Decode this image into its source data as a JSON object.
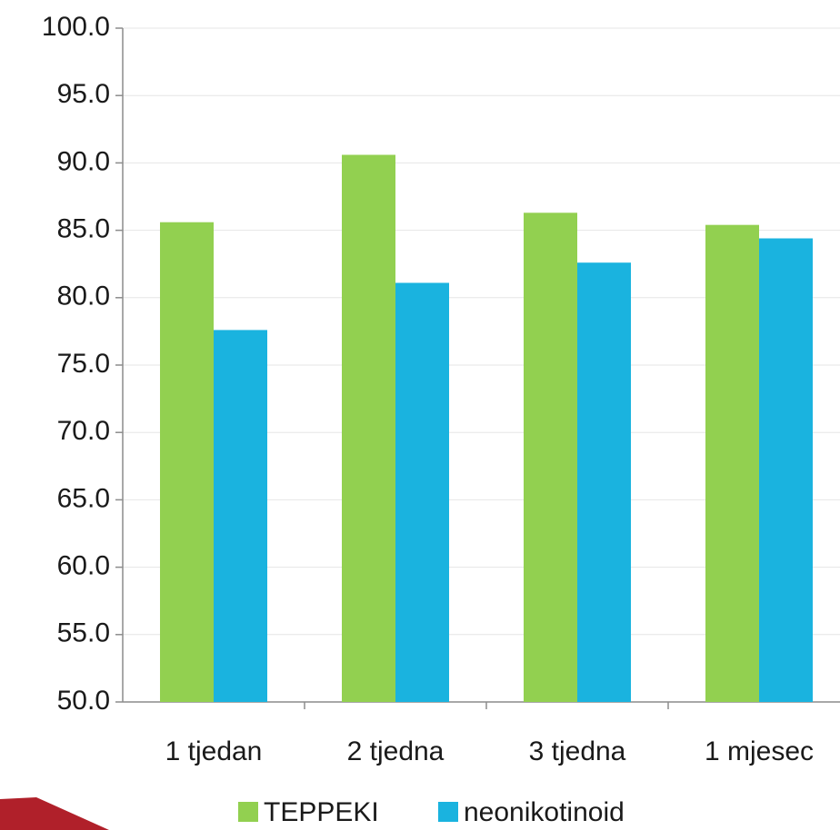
{
  "chart_data": {
    "type": "bar",
    "categories": [
      "1 tjedan",
      "2 tjedna",
      "3 tjedna",
      "1 mjesec"
    ],
    "series": [
      {
        "name": "TEPPEKI",
        "color": "#92d050",
        "values": [
          85.6,
          90.6,
          86.3,
          85.4
        ]
      },
      {
        "name": "neonikotinoid",
        "color": "#1ab3df",
        "values": [
          77.6,
          81.1,
          82.6,
          84.4
        ]
      }
    ],
    "ylim": [
      50,
      100
    ],
    "yticks": [
      {
        "value": 50,
        "label": "50.0"
      },
      {
        "value": 55,
        "label": "55.0"
      },
      {
        "value": 60,
        "label": "60.0"
      },
      {
        "value": 65,
        "label": "65.0"
      },
      {
        "value": 70,
        "label": "70.0"
      },
      {
        "value": 75,
        "label": "75.0"
      },
      {
        "value": 80,
        "label": "80.0"
      },
      {
        "value": 85,
        "label": "85.0"
      },
      {
        "value": 90,
        "label": "90.0"
      },
      {
        "value": 95,
        "label": "95.0"
      },
      {
        "value": 100,
        "label": "100.0"
      }
    ],
    "grid": true,
    "legend": "bottom"
  }
}
